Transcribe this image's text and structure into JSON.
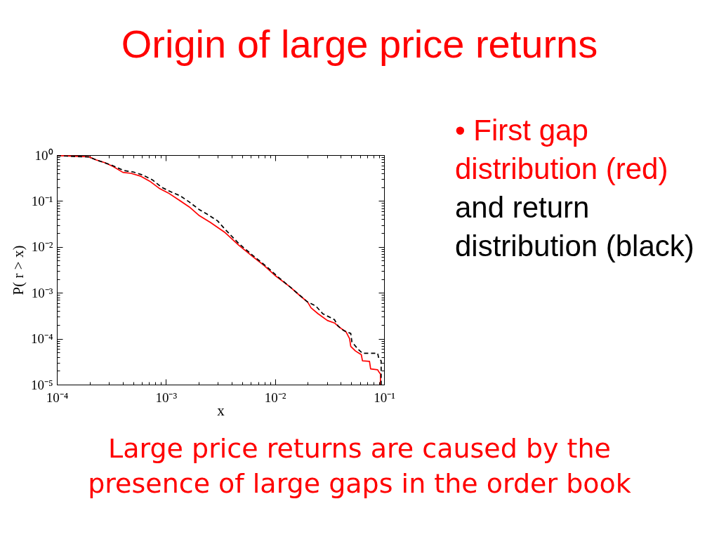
{
  "chart_data": {
    "type": "line",
    "title": "Origin of large price returns",
    "xlabel": "x",
    "ylabel": "P( r > x)",
    "annotations": [
      "• First gap distribution (red)",
      "and return distribution (black)",
      "Large price returns are caused by the presence of large gaps in the order book"
    ],
    "log": "xy",
    "grid": false,
    "xlim": [
      0.0001,
      0.1
    ],
    "ylim": [
      1e-05,
      1
    ],
    "xticks": [
      {
        "value": 0.0001,
        "label": "10⁻⁴"
      },
      {
        "value": 0.0002,
        "label": null
      },
      {
        "value": 0.0003,
        "label": null
      },
      {
        "value": 0.0004,
        "label": null
      },
      {
        "value": 0.0005,
        "label": null
      },
      {
        "value": 0.0006,
        "label": null
      },
      {
        "value": 0.0007,
        "label": null
      },
      {
        "value": 0.0008,
        "label": null
      },
      {
        "value": 0.0009,
        "label": null
      },
      {
        "value": 0.001,
        "label": "10⁻³"
      },
      {
        "value": 0.002,
        "label": null
      },
      {
        "value": 0.003,
        "label": null
      },
      {
        "value": 0.004,
        "label": null
      },
      {
        "value": 0.005,
        "label": null
      },
      {
        "value": 0.006,
        "label": null
      },
      {
        "value": 0.007,
        "label": null
      },
      {
        "value": 0.008,
        "label": null
      },
      {
        "value": 0.009,
        "label": null
      },
      {
        "value": 0.01,
        "label": "10⁻²"
      },
      {
        "value": 0.02,
        "label": null
      },
      {
        "value": 0.03,
        "label": null
      },
      {
        "value": 0.04,
        "label": null
      },
      {
        "value": 0.05,
        "label": null
      },
      {
        "value": 0.06,
        "label": null
      },
      {
        "value": 0.07,
        "label": null
      },
      {
        "value": 0.08,
        "label": null
      },
      {
        "value": 0.09,
        "label": null
      },
      {
        "value": 0.1,
        "label": "10⁻¹"
      }
    ],
    "yticks": [
      {
        "value": 1e-05,
        "label": "10⁻⁵"
      },
      {
        "value": 2e-05,
        "label": null
      },
      {
        "value": 3e-05,
        "label": null
      },
      {
        "value": 4e-05,
        "label": null
      },
      {
        "value": 5e-05,
        "label": null
      },
      {
        "value": 6e-05,
        "label": null
      },
      {
        "value": 7e-05,
        "label": null
      },
      {
        "value": 8e-05,
        "label": null
      },
      {
        "value": 9e-05,
        "label": null
      },
      {
        "value": 0.0001,
        "label": "10⁻⁴"
      },
      {
        "value": 0.0002,
        "label": null
      },
      {
        "value": 0.0003,
        "label": null
      },
      {
        "value": 0.0004,
        "label": null
      },
      {
        "value": 0.0005,
        "label": null
      },
      {
        "value": 0.0006,
        "label": null
      },
      {
        "value": 0.0007,
        "label": null
      },
      {
        "value": 0.0008,
        "label": null
      },
      {
        "value": 0.0009,
        "label": null
      },
      {
        "value": 0.001,
        "label": "10⁻³"
      },
      {
        "value": 0.002,
        "label": null
      },
      {
        "value": 0.003,
        "label": null
      },
      {
        "value": 0.004,
        "label": null
      },
      {
        "value": 0.005,
        "label": null
      },
      {
        "value": 0.006,
        "label": null
      },
      {
        "value": 0.007,
        "label": null
      },
      {
        "value": 0.008,
        "label": null
      },
      {
        "value": 0.009,
        "label": null
      },
      {
        "value": 0.01,
        "label": "10⁻²"
      },
      {
        "value": 0.02,
        "label": null
      },
      {
        "value": 0.03,
        "label": null
      },
      {
        "value": 0.04,
        "label": null
      },
      {
        "value": 0.05,
        "label": null
      },
      {
        "value": 0.06,
        "label": null
      },
      {
        "value": 0.07,
        "label": null
      },
      {
        "value": 0.08,
        "label": null
      },
      {
        "value": 0.09,
        "label": null
      },
      {
        "value": 0.1,
        "label": "10⁻¹"
      },
      {
        "value": 0.2,
        "label": null
      },
      {
        "value": 0.3,
        "label": null
      },
      {
        "value": 0.4,
        "label": null
      },
      {
        "value": 0.5,
        "label": null
      },
      {
        "value": 0.6,
        "label": null
      },
      {
        "value": 0.7,
        "label": null
      },
      {
        "value": 0.8,
        "label": null
      },
      {
        "value": 0.9,
        "label": null
      },
      {
        "value": 1,
        "label": "10⁰"
      }
    ],
    "series": [
      {
        "color": "#ff0000",
        "line_style": "solid",
        "x": [
          0.0001,
          0.000197,
          0.000228,
          0.000278,
          0.00033,
          0.000403,
          0.000479,
          0.000582,
          0.00071,
          0.000865,
          0.00105,
          0.00128,
          0.00164,
          0.002,
          0.00256,
          0.00344,
          0.00463,
          0.00622,
          0.00798,
          0.0102,
          0.0137,
          0.0167,
          0.0199,
          0.0214,
          0.0248,
          0.0302,
          0.0351,
          0.0386,
          0.0449,
          0.0483,
          0.0495,
          0.0547,
          0.0618,
          0.0634,
          0.0735,
          0.0753,
          0.0873,
          0.0895,
          0.0927,
          0.0927
        ],
        "values": [
          0.98,
          0.92,
          0.79,
          0.68,
          0.56,
          0.42,
          0.4,
          0.35,
          0.27,
          0.19,
          0.15,
          0.11,
          0.074,
          0.049,
          0.034,
          0.021,
          0.011,
          0.0062,
          0.0039,
          0.0023,
          0.00135,
          0.00089,
          0.00063,
          0.00047,
          0.00035,
          0.00025,
          0.00022,
          0.00018,
          0.00014,
          0.0001,
          6.8e-05,
          5.4e-05,
          4.5e-05,
          3.3e-05,
          3.2e-05,
          2.2e-05,
          2.1e-05,
          1.9e-05,
          1.7e-05,
          1e-05
        ]
      },
      {
        "color": "#000000",
        "line_style": "dashed",
        "x": [
          0.0001,
          0.000197,
          0.000228,
          0.00032,
          0.00041,
          0.0005,
          0.00061,
          0.00075,
          0.00091,
          0.0011,
          0.00135,
          0.00164,
          0.002,
          0.00244,
          0.00297,
          0.00344,
          0.00463,
          0.00622,
          0.0084,
          0.0107,
          0.0137,
          0.0199,
          0.0236,
          0.0274,
          0.0351,
          0.0378,
          0.0427,
          0.0495,
          0.0507,
          0.0574,
          0.0634,
          0.0873,
          0.0895,
          0.094,
          0.094
        ],
        "values": [
          0.97,
          0.91,
          0.79,
          0.6,
          0.46,
          0.43,
          0.37,
          0.29,
          0.2,
          0.16,
          0.13,
          0.095,
          0.066,
          0.05,
          0.037,
          0.025,
          0.012,
          0.0066,
          0.0037,
          0.0022,
          0.00135,
          0.00063,
          0.00052,
          0.00035,
          0.00026,
          0.00019,
          0.00015,
          0.00013,
          8.5e-05,
          6e-05,
          4.8e-05,
          4.8e-05,
          3.7e-05,
          3.3e-05,
          1e-05
        ]
      }
    ]
  }
}
